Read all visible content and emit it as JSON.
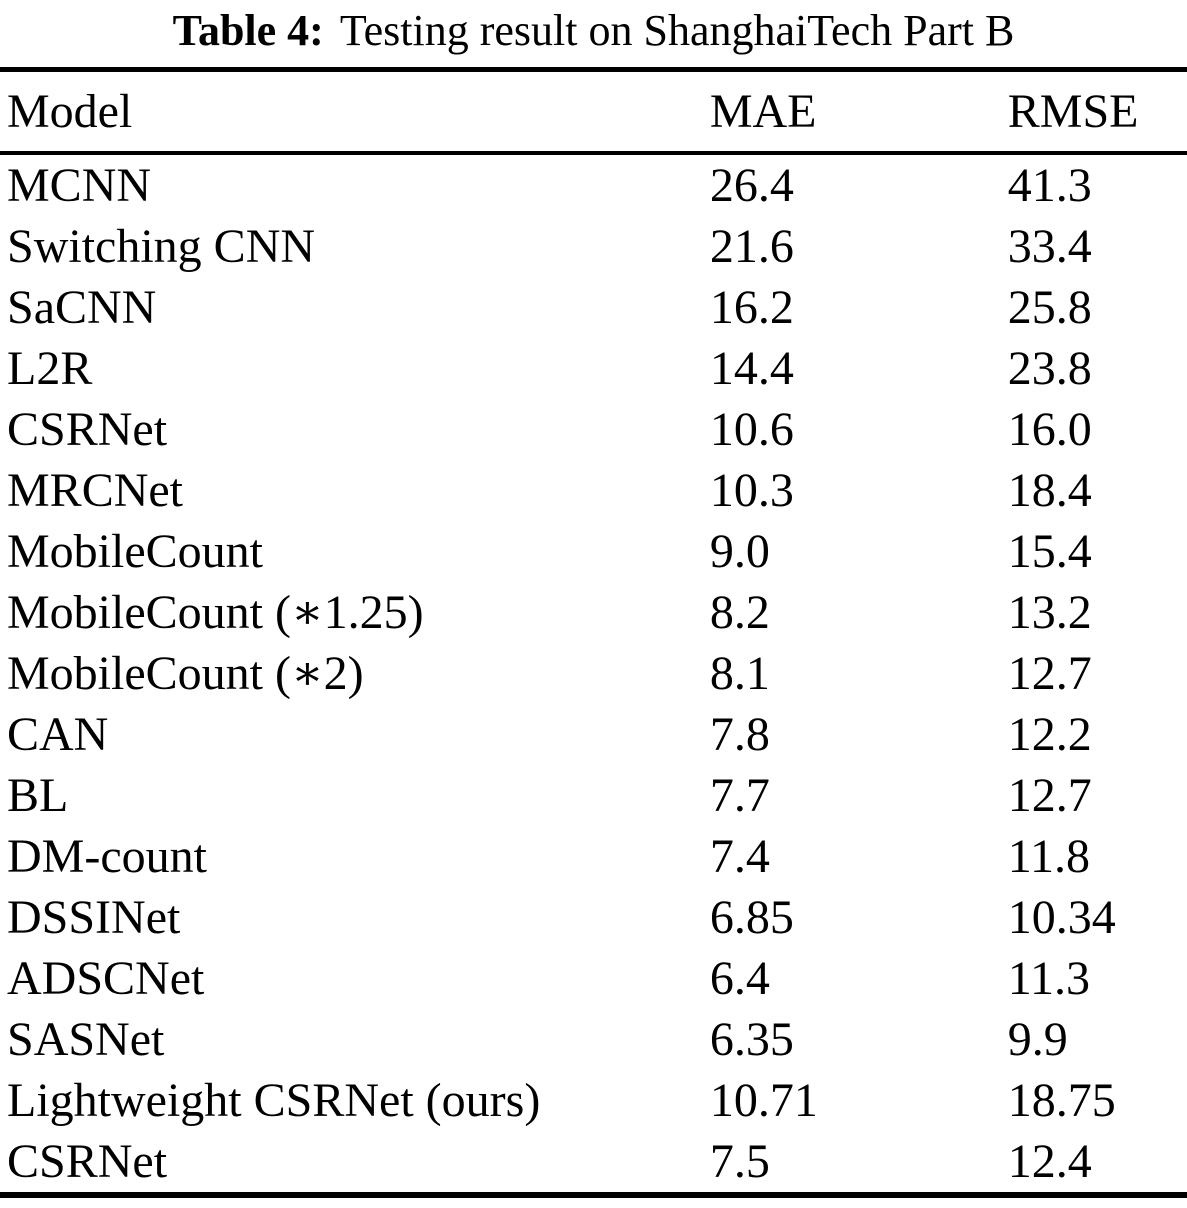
{
  "caption": {
    "label": "Table 4:",
    "text": "Testing result on ShanghaiTech Part B"
  },
  "table": {
    "columns": [
      "Model",
      "MAE",
      "RMSE"
    ],
    "rows": [
      {
        "model": "MCNN",
        "mae": "26.4",
        "rmse": "41.3"
      },
      {
        "model": "Switching CNN",
        "mae": "21.6",
        "rmse": "33.4"
      },
      {
        "model": "SaCNN",
        "mae": "16.2",
        "rmse": "25.8"
      },
      {
        "model": "L2R",
        "mae": "14.4",
        "rmse": "23.8"
      },
      {
        "model": "CSRNet",
        "mae": "10.6",
        "rmse": "16.0"
      },
      {
        "model": "MRCNet",
        "mae": "10.3",
        "rmse": "18.4"
      },
      {
        "model": "MobileCount",
        "mae": "9.0",
        "rmse": "15.4"
      },
      {
        "model": "MobileCount (∗1.25)",
        "mae": "8.2",
        "rmse": "13.2"
      },
      {
        "model": "MobileCount (∗2)",
        "mae": "8.1",
        "rmse": "12.7"
      },
      {
        "model": "CAN",
        "mae": "7.8",
        "rmse": "12.2"
      },
      {
        "model": "BL",
        "mae": "7.7",
        "rmse": "12.7"
      },
      {
        "model": "DM-count",
        "mae": "7.4",
        "rmse": "11.8"
      },
      {
        "model": "DSSINet",
        "mae": "6.85",
        "rmse": "10.34"
      },
      {
        "model": "ADSCNet",
        "mae": "6.4",
        "rmse": "11.3"
      },
      {
        "model": "SASNet",
        "mae": "6.35",
        "rmse": "9.9"
      },
      {
        "model": "Lightweight CSRNet (ours)",
        "mae": "10.71",
        "rmse": "18.75"
      },
      {
        "model": "CSRNet",
        "mae": "7.5",
        "rmse": "12.4"
      }
    ]
  }
}
